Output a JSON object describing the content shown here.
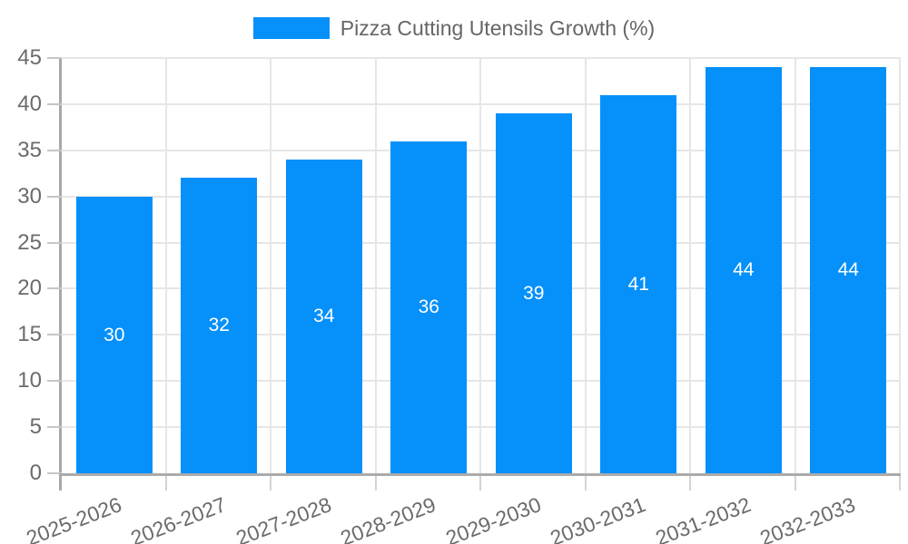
{
  "chart_data": {
    "type": "bar",
    "title": "Pizza Cutting Utensils Growth (%)",
    "categories": [
      "2025-2026",
      "2026-2027",
      "2027-2028",
      "2028-2029",
      "2029-2030",
      "2030-2031",
      "2031-2032",
      "2032-2033"
    ],
    "values": [
      30,
      32,
      34,
      36,
      39,
      41,
      44,
      44
    ],
    "bar_value_labels": [
      "30",
      "32",
      "34",
      "36",
      "39",
      "41",
      "44",
      "44"
    ],
    "xlabel": "",
    "ylabel": "",
    "ylim": [
      0,
      45
    ],
    "ytick_step": 5,
    "yticks": [
      0,
      5,
      10,
      15,
      20,
      25,
      30,
      35,
      40,
      45
    ],
    "grid": true,
    "legend_position": "top",
    "colors": {
      "bar": "#0590fa",
      "axis_text": "#6b6b6b",
      "legend_text": "#666666",
      "value_label_text": "#ffffff",
      "gridline": "#e6e6e6",
      "axis_line": "#a9a9a9",
      "tick_mark": "#c6c6c6"
    }
  }
}
